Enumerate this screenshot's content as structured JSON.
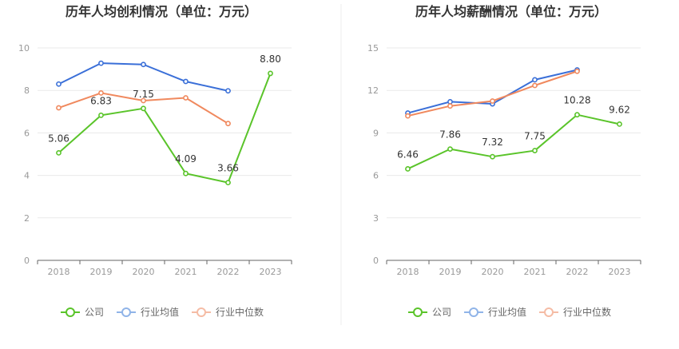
{
  "colors": {
    "company": "#5ac42a",
    "industry_avg": "#3a6fd8",
    "industry_median": "#f0895e",
    "legend_avg": "#90b4e8",
    "legend_median": "#f5bca5",
    "axis": "#666666",
    "grid": "#e9e9e9"
  },
  "legend": {
    "company": "公司",
    "industry_avg": "行业均值",
    "industry_median": "行业中位数"
  },
  "chart_data": [
    {
      "type": "line",
      "title": "历年人均创利情况（单位：万元）",
      "categories": [
        "2018",
        "2019",
        "2020",
        "2021",
        "2022",
        "2023"
      ],
      "ylim": [
        0,
        10
      ],
      "yticks": [
        0,
        2,
        4,
        6,
        8,
        10
      ],
      "grid": true,
      "legend_position": "bottom",
      "series": [
        {
          "name": "公司",
          "key": "company",
          "values": [
            5.06,
            6.83,
            7.15,
            4.09,
            3.66,
            8.8
          ],
          "labels": [
            "5.06",
            "6.83",
            "7.15",
            "4.09",
            "3.66",
            "8.80"
          ]
        },
        {
          "name": "行业均值",
          "key": "industry_avg",
          "values": [
            8.3,
            9.28,
            9.22,
            8.42,
            7.98,
            null
          ]
        },
        {
          "name": "行业中位数",
          "key": "industry_median",
          "values": [
            7.18,
            7.88,
            7.52,
            7.65,
            6.44,
            null
          ]
        }
      ]
    },
    {
      "type": "line",
      "title": "历年人均薪酬情况（单位：万元）",
      "categories": [
        "2018",
        "2019",
        "2020",
        "2021",
        "2022",
        "2023"
      ],
      "ylim": [
        0,
        15
      ],
      "yticks": [
        0,
        3,
        6,
        9,
        12,
        15
      ],
      "grid": true,
      "legend_position": "bottom",
      "series": [
        {
          "name": "公司",
          "key": "company",
          "values": [
            6.46,
            7.86,
            7.32,
            7.75,
            10.28,
            9.62
          ],
          "labels": [
            "6.46",
            "7.86",
            "7.32",
            "7.75",
            "10.28",
            "9.62"
          ]
        },
        {
          "name": "行业均值",
          "key": "industry_avg",
          "values": [
            10.4,
            11.2,
            11.05,
            12.75,
            13.45,
            null
          ]
        },
        {
          "name": "行业中位数",
          "key": "industry_median",
          "values": [
            10.2,
            10.9,
            11.25,
            12.35,
            13.35,
            null
          ]
        }
      ]
    }
  ]
}
